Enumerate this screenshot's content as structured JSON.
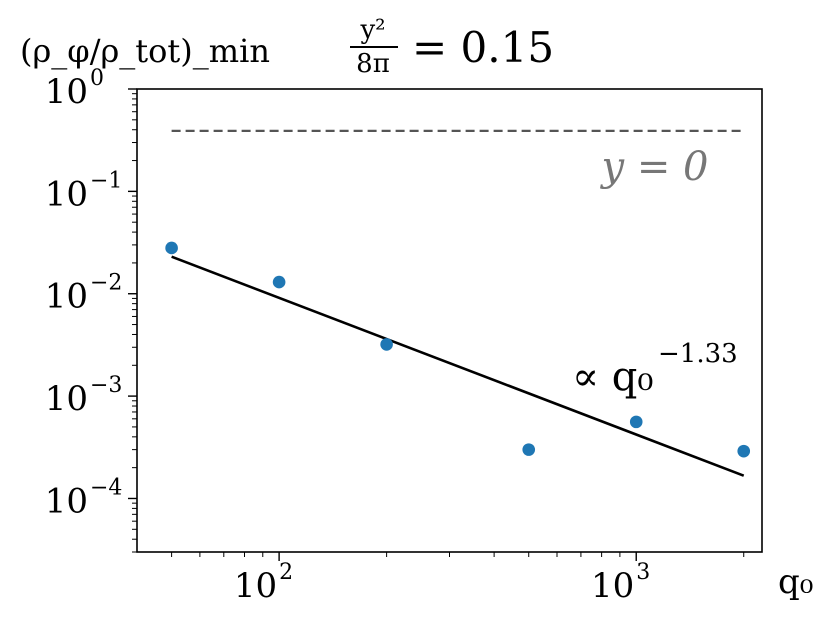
{
  "chart_data": {
    "type": "scatter",
    "title": "y²/8π = 0.15",
    "ylabel": "(ρ_φ/ρ_tot)_min",
    "xlabel": "q₀",
    "xscale": "log",
    "yscale": "log",
    "xlim": [
      40,
      2250
    ],
    "ylim": [
      3e-05,
      1
    ],
    "x_ticks": [
      {
        "value": 100,
        "base": "10",
        "exp": "2"
      },
      {
        "value": 1000,
        "base": "10",
        "exp": "3"
      }
    ],
    "y_ticks": [
      {
        "value": 1,
        "base": "10",
        "exp": "0"
      },
      {
        "value": 0.1,
        "base": "10",
        "exp": "−1"
      },
      {
        "value": 0.01,
        "base": "10",
        "exp": "−2"
      },
      {
        "value": 0.001,
        "base": "10",
        "exp": "−3"
      },
      {
        "value": 0.0001,
        "base": "10",
        "exp": "−4"
      }
    ],
    "grid": false,
    "series": [
      {
        "type": "scatter",
        "color": "#1f77b4",
        "x": [
          50,
          100,
          200,
          500,
          1000,
          2000
        ],
        "y": [
          0.028,
          0.013,
          0.0032,
          0.0003,
          0.00056,
          0.00029
        ]
      },
      {
        "type": "fit-line",
        "color": "#000000",
        "x": [
          50,
          2000
        ],
        "y": [
          0.023,
          0.000167
        ]
      },
      {
        "type": "reference-line",
        "color": "#555555",
        "style": "dashed",
        "x": [
          50,
          2000
        ],
        "y": [
          0.39,
          0.39
        ]
      }
    ],
    "annotations": {
      "reference_label": "y = 0",
      "fit_label": "∝ q₀",
      "fit_exponent": "−1.33"
    }
  },
  "title_parts": {
    "numerator": "y²",
    "denominator": "8π",
    "rhs": "= 0.15"
  }
}
